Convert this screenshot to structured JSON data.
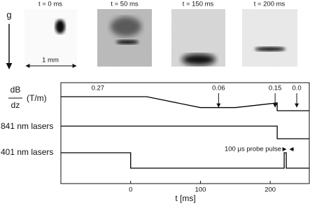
{
  "images": [
    {
      "label": "t = 0 ms"
    },
    {
      "label": "t = 50 ms"
    },
    {
      "label": "t = 150 ms"
    },
    {
      "label": "t = 200 ms"
    }
  ],
  "gravity_label": "g",
  "scale_label": "1 mm",
  "chart_data": {
    "type": "timing",
    "xlabel": "t [ms]",
    "xlim": [
      -100,
      256
    ],
    "xticks": [
      0,
      100,
      200
    ],
    "series": [
      {
        "ylabel": {
          "numerator": "dB",
          "denominator": "dz",
          "unit": "(T/m)"
        },
        "color": "#000000",
        "ylim": [
          0,
          0.27
        ],
        "x": [
          -100,
          23,
          100,
          150,
          210,
          210,
          256
        ],
        "values": [
          0.27,
          0.27,
          0.06,
          0.06,
          0.15,
          0.0,
          0.0
        ]
      },
      {
        "name": "841 nm lasers",
        "color": "#000000",
        "ylim": [
          0,
          1
        ],
        "x": [
          -100,
          210,
          210,
          256
        ],
        "values": [
          1,
          1,
          0,
          0
        ]
      },
      {
        "name": "401 nm lasers",
        "color": "#000000",
        "ylim": [
          0,
          1
        ],
        "x": [
          -100,
          0,
          0,
          220,
          220,
          223,
          223,
          256
        ],
        "values": [
          1,
          1,
          0,
          0,
          1,
          1,
          0,
          0
        ]
      }
    ],
    "annotations": [
      {
        "label": "0.27",
        "x": -47,
        "arrow": false
      },
      {
        "label": "0.06",
        "x": 126,
        "arrow": true
      },
      {
        "label": "0.15",
        "x": 207,
        "arrow": true
      },
      {
        "label": "0.0",
        "x": 238,
        "arrow": true
      }
    ],
    "pulse_label": "100 μs probe pulse"
  }
}
